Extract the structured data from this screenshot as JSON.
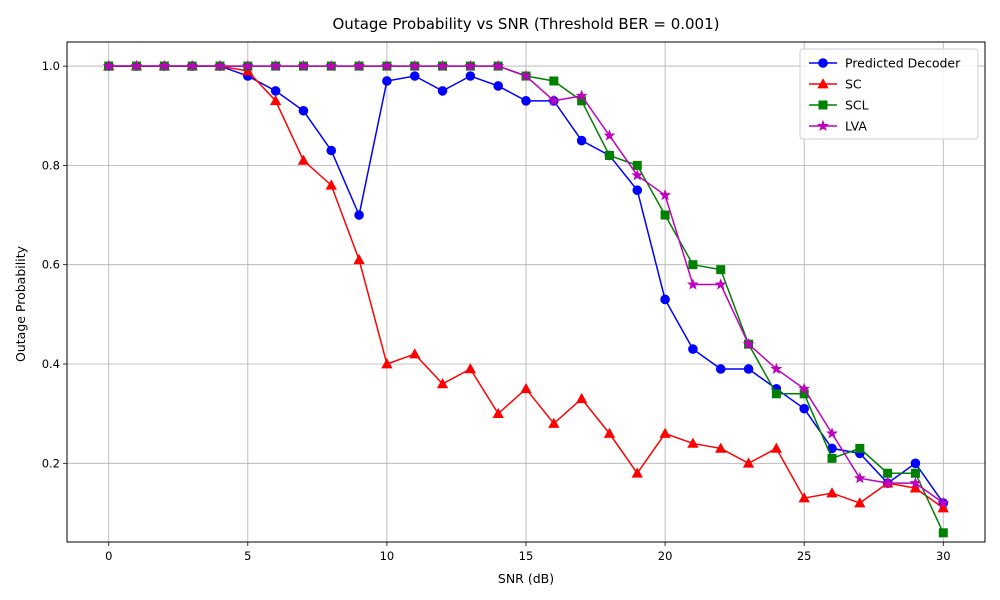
{
  "chart_data": {
    "type": "line",
    "title": "Outage Probability vs SNR (Threshold BER = 0.001)",
    "xlabel": "SNR (dB)",
    "ylabel": "Outage Probability",
    "xlim": [
      -1.5,
      31.5
    ],
    "ylim": [
      0.0415,
      1.0485
    ],
    "xticks": [
      0,
      5,
      10,
      15,
      20,
      25,
      30
    ],
    "yticks": [
      0.2,
      0.4,
      0.6,
      0.8,
      1.0
    ],
    "ytick_labels": [
      "0.2",
      "0.4",
      "0.6",
      "0.8",
      "1.0"
    ],
    "grid": true,
    "legend_position": "top-right",
    "x": [
      0,
      1,
      2,
      3,
      4,
      5,
      6,
      7,
      8,
      9,
      10,
      11,
      12,
      13,
      14,
      15,
      16,
      17,
      18,
      19,
      20,
      21,
      22,
      23,
      24,
      25,
      26,
      27,
      28,
      29,
      30
    ],
    "series": [
      {
        "name": "Predicted Decoder",
        "color": "#0000ff",
        "marker": "circle",
        "values": [
          1.0,
          1.0,
          1.0,
          1.0,
          1.0,
          0.98,
          0.95,
          0.91,
          0.83,
          0.7,
          0.97,
          0.98,
          0.95,
          0.98,
          0.96,
          0.93,
          0.93,
          0.85,
          0.82,
          0.75,
          0.53,
          0.43,
          0.39,
          0.39,
          0.35,
          0.31,
          0.23,
          0.22,
          0.16,
          0.2,
          0.12
        ]
      },
      {
        "name": "SC",
        "color": "#ff0000",
        "marker": "triangle",
        "values": [
          1.0,
          1.0,
          1.0,
          1.0,
          1.0,
          0.99,
          0.93,
          0.81,
          0.76,
          0.61,
          0.4,
          0.42,
          0.36,
          0.39,
          0.3,
          0.35,
          0.28,
          0.33,
          0.26,
          0.18,
          0.26,
          0.24,
          0.23,
          0.2,
          0.23,
          0.13,
          0.14,
          0.12,
          0.16,
          0.15,
          0.11
        ]
      },
      {
        "name": "SCL",
        "color": "#008000",
        "marker": "square",
        "values": [
          1.0,
          1.0,
          1.0,
          1.0,
          1.0,
          1.0,
          1.0,
          1.0,
          1.0,
          1.0,
          1.0,
          1.0,
          1.0,
          1.0,
          1.0,
          0.98,
          0.97,
          0.93,
          0.82,
          0.8,
          0.7,
          0.6,
          0.59,
          0.44,
          0.34,
          0.34,
          0.21,
          0.23,
          0.18,
          0.18,
          0.06
        ]
      },
      {
        "name": "LVA",
        "color": "#bf00bf",
        "marker": "star",
        "values": [
          1.0,
          1.0,
          1.0,
          1.0,
          1.0,
          1.0,
          1.0,
          1.0,
          1.0,
          1.0,
          1.0,
          1.0,
          1.0,
          1.0,
          1.0,
          0.98,
          0.93,
          0.94,
          0.86,
          0.78,
          0.74,
          0.56,
          0.56,
          0.44,
          0.39,
          0.35,
          0.26,
          0.17,
          0.16,
          0.16,
          0.12
        ]
      }
    ]
  }
}
